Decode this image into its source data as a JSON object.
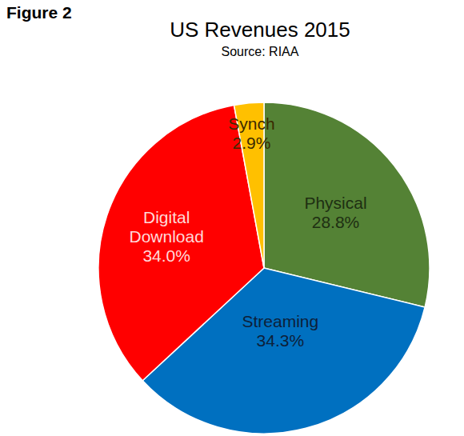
{
  "chart_data": {
    "type": "pie",
    "title": "US Revenues 2015",
    "subtitle": "Source: RIAA",
    "annotations": [
      "Figure 2"
    ],
    "categories": [
      "Physical",
      "Streaming",
      "Digital Download",
      "Synch"
    ],
    "values": [
      28.8,
      34.3,
      34.0,
      2.9
    ],
    "value_labels": [
      "28.8%",
      "34.3%",
      "34.0%",
      "2.9%"
    ],
    "colors": [
      "#548235",
      "#0070c0",
      "#ff0000",
      "#ffc000"
    ],
    "data_labels": true
  }
}
